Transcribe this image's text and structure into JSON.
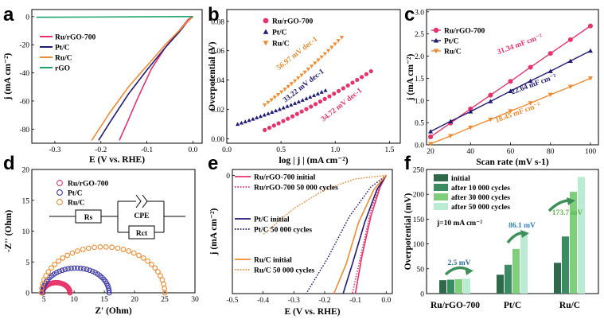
{
  "colors": {
    "ru_rgo": "#e8336a",
    "pt": "#1f1a78",
    "ru": "#f28a2f",
    "rgo": "#1aa36a"
  },
  "chart_data": [
    {
      "panel": "a",
      "type": "line",
      "xlabel": "E (V vs. RHE)",
      "ylabel": "j (mA cm⁻²)",
      "xlim": [
        -0.35,
        0.02
      ],
      "ylim": [
        -90,
        5
      ],
      "xticks": [
        -0.3,
        -0.2,
        -0.1,
        0.0
      ],
      "yticks": [
        0,
        -20,
        -40,
        -60,
        -80
      ],
      "xtick_labels": [
        "-0.3",
        "-0.2",
        "-0.1",
        "0.0"
      ],
      "ytick_labels": [
        "0",
        "-20",
        "-40",
        "-60",
        "-80"
      ],
      "legend": "top-left",
      "series": [
        {
          "name": "Ru/rGO-700",
          "color": "#e8336a",
          "x": [
            0.0,
            -0.01,
            -0.03,
            -0.06,
            -0.09,
            -0.12,
            -0.145,
            -0.16
          ],
          "y": [
            0,
            -2,
            -10,
            -22,
            -37,
            -58,
            -77,
            -88
          ]
        },
        {
          "name": "Pt/C",
          "color": "#1f1a78",
          "x": [
            0.0,
            -0.01,
            -0.03,
            -0.06,
            -0.1,
            -0.14,
            -0.18,
            -0.205
          ],
          "y": [
            0,
            -3,
            -11,
            -22,
            -38,
            -55,
            -75,
            -88
          ]
        },
        {
          "name": "Ru/C",
          "color": "#f28a2f",
          "x": [
            0.0,
            -0.01,
            -0.03,
            -0.06,
            -0.1,
            -0.14,
            -0.18,
            -0.22
          ],
          "y": [
            0,
            -3,
            -10,
            -20,
            -35,
            -50,
            -68,
            -88
          ]
        },
        {
          "name": "rGO",
          "color": "#1aa36a",
          "x": [
            -0.34,
            -0.2,
            -0.1,
            0.0
          ],
          "y": [
            -0.5,
            -0.3,
            -0.1,
            0
          ]
        }
      ]
    },
    {
      "panel": "b",
      "type": "scatter",
      "xlabel": "log | j | (mA cm⁻²)",
      "ylabel": "Overpotential (V)",
      "xlim": [
        0,
        1.6
      ],
      "ylim": [
        -0.003,
        0.088
      ],
      "xticks": [
        0.0,
        0.5,
        1.0,
        1.5
      ],
      "yticks": [
        0.0,
        0.02,
        0.04,
        0.06,
        0.08
      ],
      "xtick_labels": [
        "0.0",
        "0.5",
        "1.0",
        "1.5"
      ],
      "ytick_labels": [
        "0.00",
        "0.02",
        "0.04",
        "0.06",
        "0.08"
      ],
      "legend": "top-left",
      "series": [
        {
          "name": "Ru/rGO-700",
          "color": "#e8336a",
          "marker": "circle",
          "x_start": 0.35,
          "x_end": 1.33,
          "y_start": 0.006,
          "y_end": 0.046
        },
        {
          "name": "Pt/C",
          "color": "#1f1a78",
          "marker": "triangle-up",
          "x_start": 0.1,
          "x_end": 0.91,
          "y_start": 0.01,
          "y_end": 0.033
        },
        {
          "name": "Ru/C",
          "color": "#f28a2f",
          "marker": "triangle-down",
          "x_start": 0.35,
          "x_end": 1.06,
          "y_start": 0.023,
          "y_end": 0.069
        }
      ],
      "annotations": [
        {
          "text": "56.97 mV dec-1",
          "color": "#f28a2f",
          "x": 0.66,
          "y": 0.057
        },
        {
          "text": "33.22 mV dec-1",
          "color": "#1f1a78",
          "x": 0.72,
          "y": 0.035
        },
        {
          "text": "34.72 mV dec-1",
          "color": "#e8336a",
          "x": 1.07,
          "y": 0.022
        }
      ]
    },
    {
      "panel": "c",
      "type": "line",
      "xlabel": "Scan rate (mV s-1)",
      "ylabel": "j (mA cm⁻²)",
      "xlim": [
        18,
        104
      ],
      "ylim": [
        0,
        3.05
      ],
      "xticks": [
        20,
        40,
        60,
        80,
        100
      ],
      "yticks": [
        0.0,
        0.5,
        1.0,
        1.5,
        2.0,
        2.5,
        3.0
      ],
      "xtick_labels": [
        "20",
        "40",
        "60",
        "80",
        "100"
      ],
      "ytick_labels": [
        "0.0",
        "0.5",
        "1.0",
        "1.5",
        "2.0",
        "2.5",
        "3.0"
      ],
      "legend": "top-left",
      "series": [
        {
          "name": "Ru/rGO-700",
          "color": "#e8336a",
          "marker": "circle",
          "x": [
            20,
            30,
            40,
            50,
            60,
            70,
            80,
            90,
            100
          ],
          "y": [
            0.18,
            0.49,
            0.81,
            1.12,
            1.43,
            1.75,
            2.06,
            2.37,
            2.68
          ]
        },
        {
          "name": "Pt/C",
          "color": "#1f1a78",
          "marker": "triangle-up",
          "x": [
            20,
            30,
            40,
            50,
            60,
            70,
            80,
            90,
            100
          ],
          "y": [
            0.3,
            0.53,
            0.75,
            0.98,
            1.21,
            1.44,
            1.66,
            1.89,
            2.12
          ]
        },
        {
          "name": "Ru/C",
          "color": "#f28a2f",
          "marker": "triangle-down",
          "x": [
            20,
            30,
            40,
            50,
            60,
            70,
            80,
            90,
            100
          ],
          "y": [
            0.02,
            0.2,
            0.39,
            0.57,
            0.76,
            0.94,
            1.13,
            1.31,
            1.5
          ]
        }
      ],
      "annotations": [
        {
          "text": "31.34 mF cm⁻²",
          "color": "#e8336a",
          "x": 65,
          "y": 2.22
        },
        {
          "text": "22.64 mF cm⁻²",
          "color": "#1f1a78",
          "x": 72,
          "y": 1.32
        },
        {
          "text": "18.45 mF cm⁻²",
          "color": "#f28a2f",
          "x": 64,
          "y": 0.68
        }
      ]
    },
    {
      "panel": "d",
      "type": "scatter",
      "xlabel": "Z' (Ohm)",
      "ylabel": "-Z'' (Ohm)",
      "xlim": [
        3,
        30
      ],
      "ylim": [
        0,
        20
      ],
      "xticks": [
        5,
        10,
        15,
        20,
        25,
        30
      ],
      "yticks": [
        0,
        5,
        10,
        15,
        20
      ],
      "xtick_labels": [
        "5",
        "10",
        "15",
        "20",
        "25",
        "30"
      ],
      "ytick_labels": [
        "0",
        "5",
        "10",
        "15",
        "20"
      ],
      "legend": "top-left",
      "circuit_labels": [
        "Rs",
        "CPE",
        "Rct"
      ],
      "series": [
        {
          "name": "Ru/rGO-700",
          "color": "#e8336a",
          "marker": "open-circle",
          "start": 4.8,
          "end": 9.3
        },
        {
          "name": "Pt/C",
          "color": "#3a36a8",
          "marker": "open-circle",
          "start": 4.8,
          "end": 15.8
        },
        {
          "name": "Ru/C",
          "color": "#f28a2f",
          "marker": "open-circle",
          "start": 4.6,
          "end": 25.0
        }
      ]
    },
    {
      "panel": "e",
      "type": "line",
      "xlabel": "E (V vs. RHE)",
      "ylabel": "j (mA cm⁻²)",
      "xlim": [
        -0.5,
        0.02
      ],
      "ylim": [
        -100,
        5
      ],
      "xticks": [
        -0.5,
        -0.4,
        -0.3,
        -0.2,
        -0.1,
        0.0
      ],
      "yticks": [
        0
      ],
      "xtick_labels": [
        "-0.5",
        "-0.4",
        "-0.3",
        "-0.2",
        "-0.1",
        "0.0"
      ],
      "ytick_labels": [
        "0"
      ],
      "legend": "left",
      "series": [
        {
          "name": "Ru/rGO-700 initial",
          "color": "#e8336a",
          "dash": false,
          "x": [
            0.0,
            -0.02,
            -0.05,
            -0.08,
            -0.1
          ],
          "y": [
            0,
            -10,
            -35,
            -70,
            -100
          ]
        },
        {
          "name": "Ru/rGO-700 50 000 cycles",
          "color": "#e8336a",
          "dash": true,
          "x": [
            0.0,
            -0.02,
            -0.05,
            -0.08,
            -0.11
          ],
          "y": [
            0,
            -8,
            -30,
            -65,
            -100
          ]
        },
        {
          "name": "Pt/C initial",
          "color": "#1f1a78",
          "dash": false,
          "x": [
            0.0,
            -0.03,
            -0.07,
            -0.11,
            -0.14
          ],
          "y": [
            0,
            -12,
            -40,
            -75,
            -100
          ]
        },
        {
          "name": "Pt/C 50 000 cycles",
          "color": "#1f1a78",
          "dash": true,
          "x": [
            0.0,
            -0.05,
            -0.12,
            -0.19,
            -0.26
          ],
          "y": [
            0,
            -10,
            -35,
            -70,
            -100
          ]
        },
        {
          "name": "Ru/C initial",
          "color": "#f28a2f",
          "dash": false,
          "x": [
            0.0,
            -0.04,
            -0.09,
            -0.13,
            -0.17
          ],
          "y": [
            0,
            -12,
            -40,
            -75,
            -100
          ]
        },
        {
          "name": "Ru/C 50 000 cycles",
          "color": "#f28a2f",
          "dash": true,
          "x": [
            0.0,
            -0.1,
            -0.2,
            -0.3,
            -0.4
          ],
          "y": [
            0,
            -3,
            -12,
            -28,
            -50
          ]
        }
      ]
    },
    {
      "panel": "f",
      "type": "bar",
      "ylabel": "Overpotential (mV)",
      "note": "j=10 mA cm⁻²",
      "ylim": [
        0,
        250
      ],
      "yticks": [
        0,
        50,
        100,
        150,
        200,
        250
      ],
      "ytick_labels": [
        "0",
        "50",
        "100",
        "150",
        "200",
        "250"
      ],
      "categories": [
        "Ru/rGO-700",
        "Pt/C",
        "Ru/C"
      ],
      "series": [
        {
          "name": "initial",
          "color": "#2e6a4a",
          "values": [
            27,
            38,
            62
          ]
        },
        {
          "name": "after 10 000 cycles",
          "color": "#3a8c62",
          "values": [
            28,
            58,
            115
          ]
        },
        {
          "name": "after 30 000 cycles",
          "color": "#7fcf7a",
          "values": [
            29,
            90,
            205
          ]
        },
        {
          "name": "after 50 000 cycles",
          "color": "#b9ecd2",
          "values": [
            30,
            123,
            235
          ]
        }
      ],
      "annotations": [
        {
          "text": "2.5 mV",
          "color": "#2a6a9e"
        },
        {
          "text": "86.1 mV",
          "color": "#2a7fb8"
        },
        {
          "text": "173.7 mV",
          "color": "#5db54a"
        }
      ]
    }
  ]
}
